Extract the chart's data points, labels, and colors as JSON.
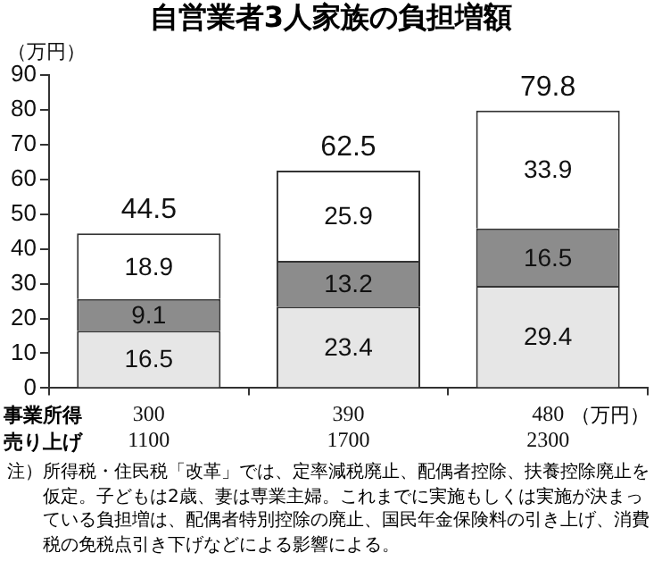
{
  "chart_data": {
    "type": "bar",
    "title": "自営業者3人家族の負担増額",
    "ylabel": "（万円）",
    "categories": [
      "300\n1100",
      "390\n1700",
      "480\n2300"
    ],
    "stacked": true,
    "series": [
      {
        "color": "#e6e6e6",
        "values": [
          16.5,
          23.4,
          29.4
        ]
      },
      {
        "color": "#8c8c8c",
        "values": [
          9.1,
          13.2,
          16.5
        ]
      },
      {
        "color": "#ffffff",
        "values": [
          18.9,
          25.9,
          33.9
        ]
      }
    ],
    "totals": [
      "44.5",
      "62.5",
      "79.8"
    ],
    "data_labels": true,
    "ylim": [
      0,
      90
    ],
    "yticks": [
      0,
      10,
      20,
      30,
      40,
      50,
      60,
      70,
      80,
      90
    ],
    "grid": false,
    "legend": false,
    "annotations": [
      "事業所得",
      "売り上げ",
      "（万円）",
      "注）所得税・住民税「改革」では、定率減税廃止、配偶者控除、扶養控除廃止を仮定。子どもは2歳、妻は専業主婦。これまでに実施もしくは実施が決まっている負担増は、配偶者特別控除の廃止、国民年金保険料の引き上げ、消費税の免税点引き下げなどによる影響による。"
    ]
  }
}
